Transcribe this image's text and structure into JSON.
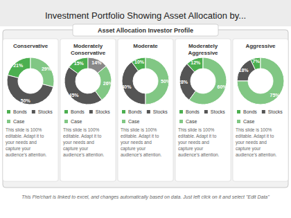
{
  "title": "Investment Portfolio Showing Asset Allocation by...",
  "subtitle": "Asset Allocation Investor Profile",
  "annotations": [
    "This Pie/chart is linked to excel, and changes automatically based on data. Just left click on it and select \"Edit Data\""
  ],
  "chart_data": [
    {
      "type": "pie",
      "title": "Conservative",
      "categories": [
        "Bonds",
        "Stocks",
        "Case"
      ],
      "values": [
        21,
        50,
        29
      ],
      "value_labels": [
        "21%",
        "50%",
        "29%"
      ],
      "colors": [
        "#4caf50",
        "#555555",
        "#81c784"
      ],
      "data_labels": true,
      "legend": "bottom",
      "annotations": [
        "This slide is 100%\neditable. Adapt it to\nyour needs and\ncapture your\naudience's attention."
      ]
    },
    {
      "type": "pie",
      "title": "Moderately\nConservative",
      "categories": [
        "Bonds",
        "Stocks",
        "Case",
        null
      ],
      "values": [
        15,
        45,
        26,
        14
      ],
      "value_labels": [
        "15%",
        "45%",
        "26%",
        "14%"
      ],
      "colors": [
        "#4caf50",
        "#555555",
        "#81c784",
        "#888888"
      ],
      "data_labels": true,
      "legend": "bottom",
      "annotations": [
        "This slide is 100%\neditable. Adapt it to\nyour needs and\ncapture your\naudience's attention."
      ]
    },
    {
      "type": "pie",
      "title": "Moderate",
      "categories": [
        "Bonds",
        "Stocks",
        "Case"
      ],
      "values": [
        10,
        40,
        50
      ],
      "value_labels": [
        "10%",
        "40%",
        "50%"
      ],
      "colors": [
        "#4caf50",
        "#555555",
        "#81c784"
      ],
      "data_labels": true,
      "legend": "bottom",
      "annotations": [
        "This slide is 100%\neditable. Adapt it to\nyour needs and\ncapture your\naudience's attention."
      ]
    },
    {
      "type": "pie",
      "title": "Moderately\nAggressive",
      "categories": [
        "Bonds",
        "Stocks",
        "Case"
      ],
      "values": [
        12,
        28,
        60
      ],
      "value_labels": [
        "12%",
        "28%",
        "60%"
      ],
      "colors": [
        "#4caf50",
        "#555555",
        "#81c784"
      ],
      "data_labels": true,
      "legend": "bottom",
      "annotations": [
        "This slide is 100%\neditable. Adapt it to\nyour needs and\ncapture your\naudience's attention."
      ]
    },
    {
      "type": "pie",
      "title": "Aggressive",
      "categories": [
        "Bonds",
        "Stocks",
        "Case"
      ],
      "values": [
        7,
        18,
        75
      ],
      "value_labels": [
        "7%",
        "18%",
        "75%"
      ],
      "colors": [
        "#4caf50",
        "#555555",
        "#81c784"
      ],
      "data_labels": true,
      "legend": "bottom",
      "annotations": [
        "This slide is 100%\neditable. Adapt it to\nyour needs and\ncapture your\naudience's attention."
      ]
    }
  ]
}
